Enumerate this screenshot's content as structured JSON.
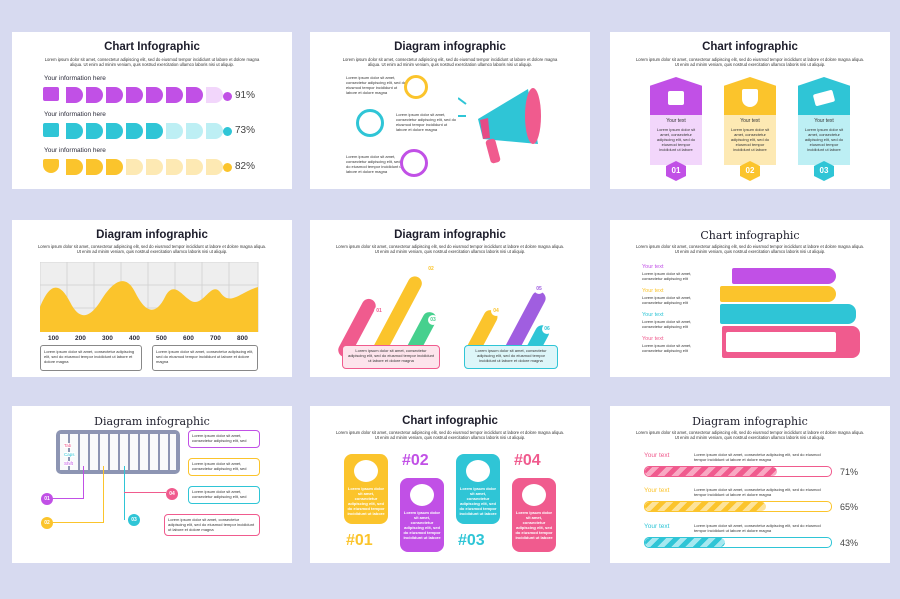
{
  "lorem_long": "Lorem ipsum dolor sit amet, consectetur adipiscing elit, sed do eiusmod tempor incididunt ut labore et dolore magna aliqua. Ut enim ad minim veniam, quis nostrud exercitation ullamco laboris nisi ut aliquip.",
  "lorem_short": "Lorem ipsum dolor sit amet, consectetur adipiscing elit, sed do eiusmod tempor incididunt ut labore et dolore magna",
  "lorem_card": "Lorem ipsum dolor sit amet, consectetur adipiscing elit, sed do eiusmod tempor incididunt ut labore",
  "lorem_tiny": "Lorem ipsum dolor sit amet, consectetur adipiscing elit, sed",
  "lorem_min": "Lorem ipsum dolor sit amet, consectetur adipiscing elit",
  "slides": {
    "s1": {
      "title": "Chart Infographic",
      "rows": [
        {
          "label": "Your information here",
          "value": "91%"
        },
        {
          "label": "Your information here",
          "value": "73%"
        },
        {
          "label": "Your information here",
          "value": "82%"
        }
      ]
    },
    "s2": {
      "title": "Diagram infographic"
    },
    "s3": {
      "title": "Chart infographic",
      "cards": [
        {
          "heading": "Your text",
          "num": "01"
        },
        {
          "heading": "Your text",
          "num": "02"
        },
        {
          "heading": "Your text",
          "num": "03"
        }
      ]
    },
    "s4": {
      "title": "Diagram infographic",
      "ticks": [
        "100",
        "200",
        "300",
        "400",
        "500",
        "600",
        "700",
        "800"
      ]
    },
    "s5": {
      "title": "Diagram infographic",
      "badges": [
        "01",
        "02",
        "03",
        "04",
        "05",
        "06"
      ]
    },
    "s6": {
      "title": "Chart infographic",
      "items": [
        "Your text",
        "Your text",
        "Your text",
        "Your text"
      ]
    },
    "s7": {
      "title": "Diagram infographic",
      "keys": [
        "Tab",
        "Caps",
        "Shift"
      ],
      "nums": [
        "01",
        "02",
        "03",
        "04"
      ]
    },
    "s8": {
      "title": "Chart infographic",
      "nums": [
        "#01",
        "#02",
        "#03",
        "#04"
      ]
    },
    "s9": {
      "title": "Diagram infographic",
      "bars": [
        {
          "label": "Your text",
          "value": "71%",
          "fill": 0.71
        },
        {
          "label": "Your text",
          "value": "65%",
          "fill": 0.65
        },
        {
          "label": "Your text",
          "value": "43%",
          "fill": 0.43
        }
      ]
    }
  },
  "colors": {
    "purple": "#c150e6",
    "cyan": "#2fc5d6",
    "yellow": "#fbc42c",
    "pink": "#f05b8e",
    "green": "#46d08e",
    "violet": "#a05ee0"
  }
}
